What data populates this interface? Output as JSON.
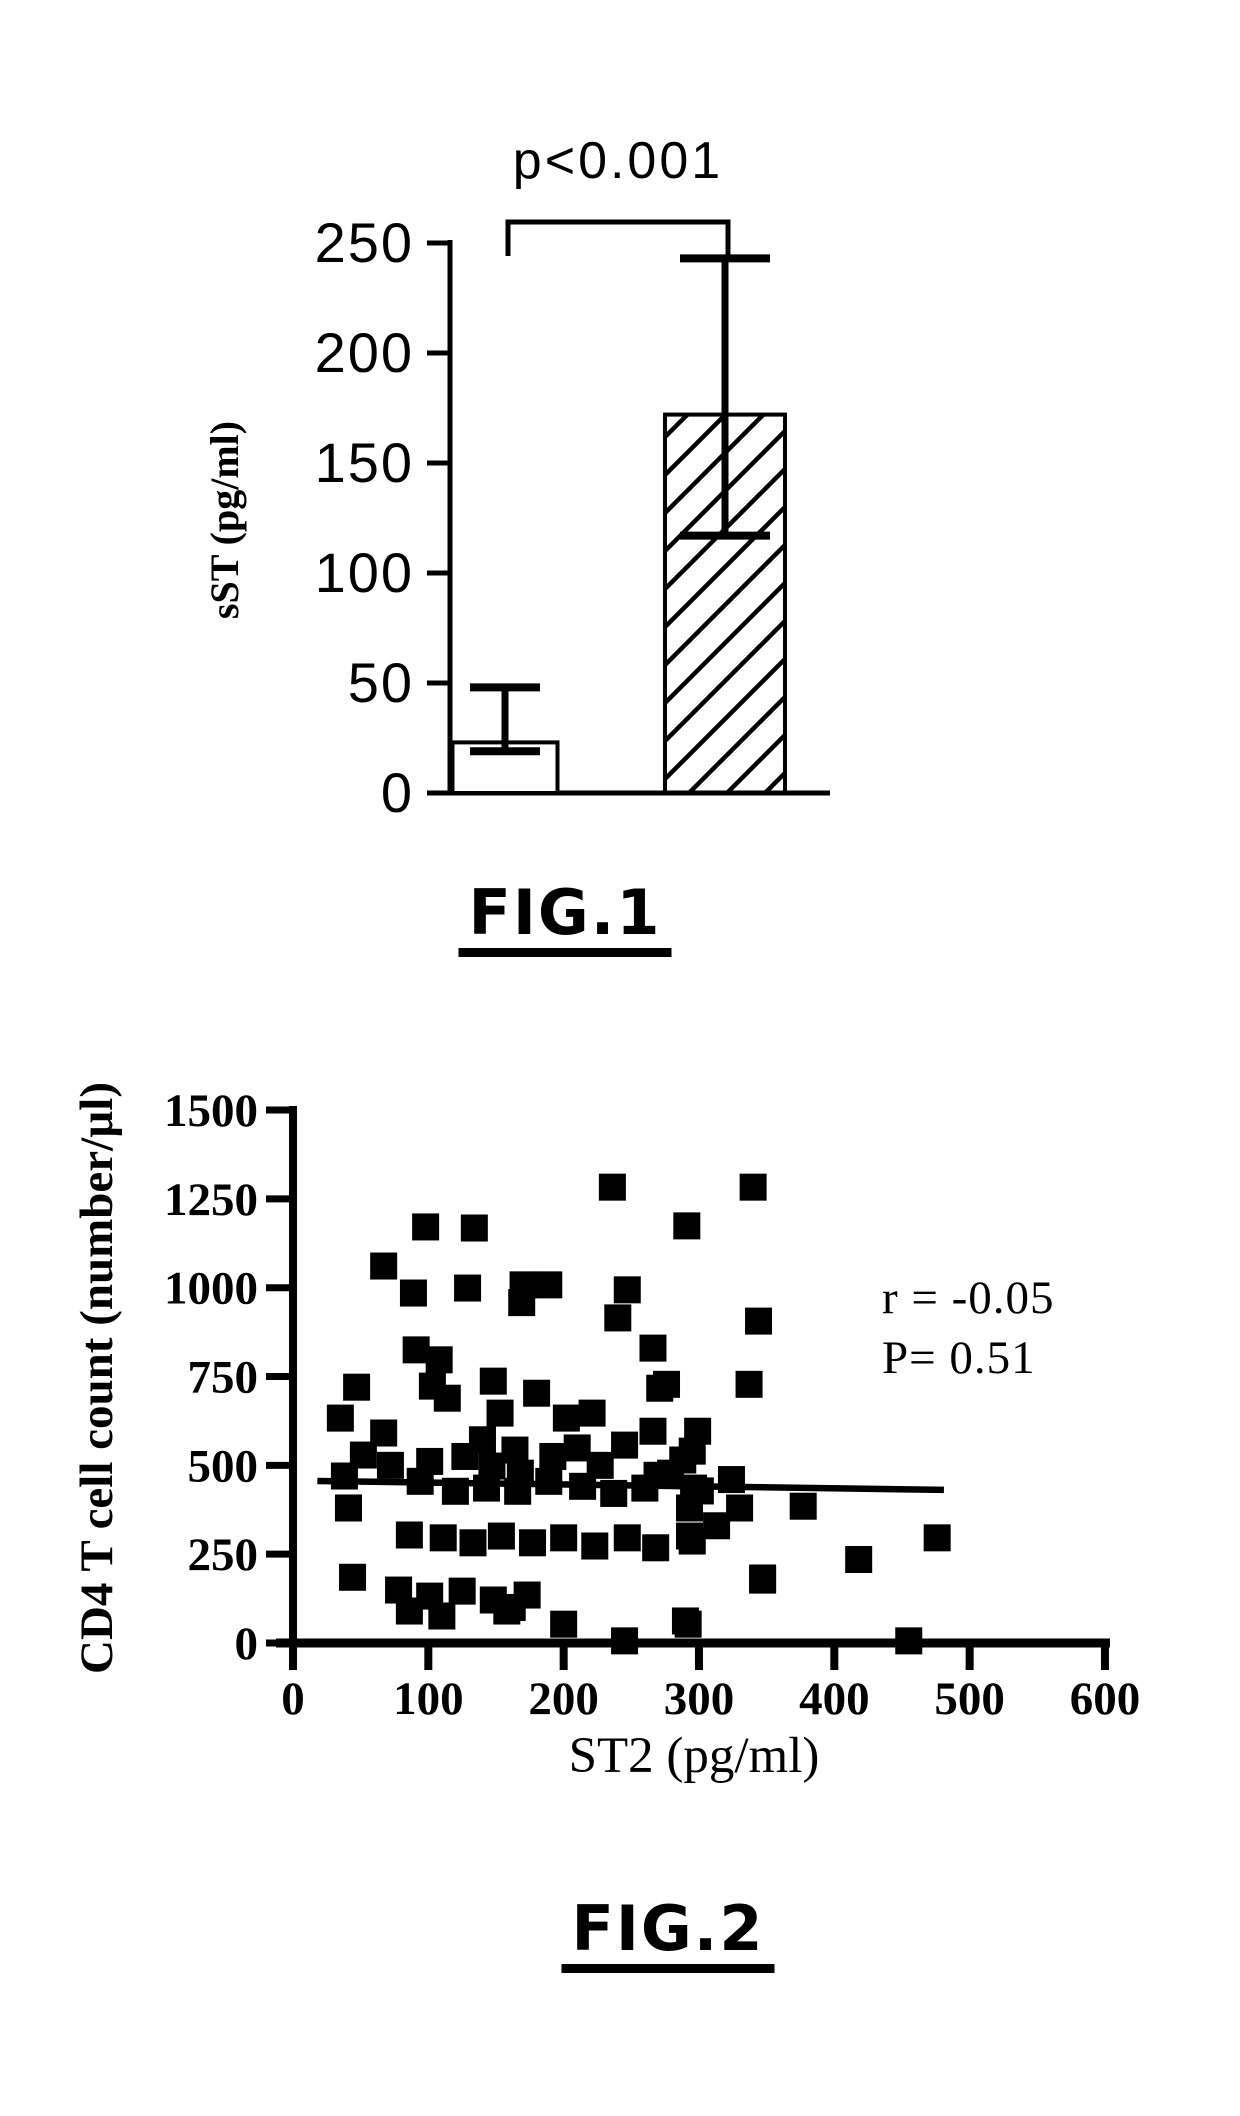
{
  "captions": {
    "fig1": "FIG.1",
    "fig2": "FIG.2"
  },
  "colors": {
    "ink": "#000000",
    "background": "#ffffff"
  },
  "chart_data": [
    {
      "id": "fig1",
      "type": "bar",
      "title": "",
      "xlabel": "",
      "ylabel": "sST (pg/ml)",
      "ylim": [
        0,
        250
      ],
      "yticks": [
        0,
        50,
        100,
        150,
        200,
        250
      ],
      "grid": false,
      "categories": [
        "group-1-open-bar",
        "group-2-hatched-bar"
      ],
      "series": [
        {
          "name": "sST",
          "values": [
            23,
            172
          ]
        }
      ],
      "error_bars": [
        {
          "low": 19,
          "high": 48
        },
        {
          "low": 117,
          "high": 243
        }
      ],
      "bar_styles": [
        "open",
        "hatched"
      ],
      "significance": {
        "label": "p<0.001",
        "between": [
          0,
          1
        ]
      }
    },
    {
      "id": "fig2",
      "type": "scatter",
      "title": "",
      "xlabel": "ST2 (pg/ml)",
      "ylabel": "CD4 T cell count (number/µl)",
      "xlim": [
        0,
        600
      ],
      "ylim": [
        0,
        1500
      ],
      "xticks": [
        0,
        100,
        200,
        300,
        400,
        500,
        600
      ],
      "yticks": [
        0,
        250,
        500,
        750,
        1000,
        1250,
        1500
      ],
      "grid": false,
      "annotation": {
        "line1": "r = -0.05",
        "line2": "P=  0.51"
      },
      "trendline": {
        "x1": 18,
        "y1": 456,
        "x2": 481,
        "y2": 431
      },
      "points": [
        [
          236,
          1283
        ],
        [
          340,
          1283
        ],
        [
          98,
          1171
        ],
        [
          134,
          1168
        ],
        [
          291,
          1174
        ],
        [
          67,
          1061
        ],
        [
          89,
          985
        ],
        [
          129,
          999
        ],
        [
          170,
          1008
        ],
        [
          189,
          1008
        ],
        [
          169,
          958
        ],
        [
          247,
          994
        ],
        [
          240,
          915
        ],
        [
          344,
          906
        ],
        [
          266,
          830
        ],
        [
          276,
          728
        ],
        [
          337,
          728
        ],
        [
          91,
          825
        ],
        [
          108,
          797
        ],
        [
          35,
          633
        ],
        [
          52,
          529
        ],
        [
          41,
          380
        ],
        [
          44,
          185
        ],
        [
          38,
          470
        ],
        [
          47,
          720
        ],
        [
          103,
          723
        ],
        [
          114,
          689
        ],
        [
          148,
          737
        ],
        [
          153,
          647
        ],
        [
          180,
          703
        ],
        [
          202,
          633
        ],
        [
          221,
          647
        ],
        [
          271,
          717
        ],
        [
          299,
          596
        ],
        [
          67,
          591
        ],
        [
          72,
          500
        ],
        [
          101,
          511
        ],
        [
          127,
          525
        ],
        [
          140,
          572
        ],
        [
          164,
          543
        ],
        [
          147,
          498
        ],
        [
          168,
          478
        ],
        [
          192,
          525
        ],
        [
          210,
          549
        ],
        [
          227,
          500
        ],
        [
          245,
          557
        ],
        [
          266,
          596
        ],
        [
          288,
          515
        ],
        [
          269,
          472
        ],
        [
          94,
          455
        ],
        [
          120,
          427
        ],
        [
          143,
          436
        ],
        [
          166,
          427
        ],
        [
          189,
          455
        ],
        [
          214,
          441
        ],
        [
          237,
          421
        ],
        [
          260,
          436
        ],
        [
          296,
          436
        ],
        [
          86,
          304
        ],
        [
          111,
          296
        ],
        [
          133,
          282
        ],
        [
          154,
          301
        ],
        [
          177,
          282
        ],
        [
          200,
          296
        ],
        [
          223,
          273
        ],
        [
          247,
          296
        ],
        [
          268,
          268
        ],
        [
          293,
          301
        ],
        [
          78,
          149
        ],
        [
          101,
          132
        ],
        [
          125,
          146
        ],
        [
          148,
          121
        ],
        [
          173,
          135
        ],
        [
          158,
          90
        ],
        [
          86,
          90
        ],
        [
          110,
          76
        ],
        [
          162,
          100
        ],
        [
          200,
          53
        ],
        [
          245,
          6
        ],
        [
          292,
          53
        ],
        [
          347,
          177
        ],
        [
          455,
          6
        ],
        [
          295,
          540
        ],
        [
          279,
          478
        ],
        [
          324,
          460
        ],
        [
          301,
          428
        ],
        [
          330,
          380
        ],
        [
          377,
          385
        ],
        [
          313,
          330
        ],
        [
          295,
          287
        ],
        [
          476,
          296
        ],
        [
          418,
          235
        ],
        [
          347,
          183
        ],
        [
          290,
          62
        ],
        [
          293,
          380
        ]
      ]
    }
  ]
}
